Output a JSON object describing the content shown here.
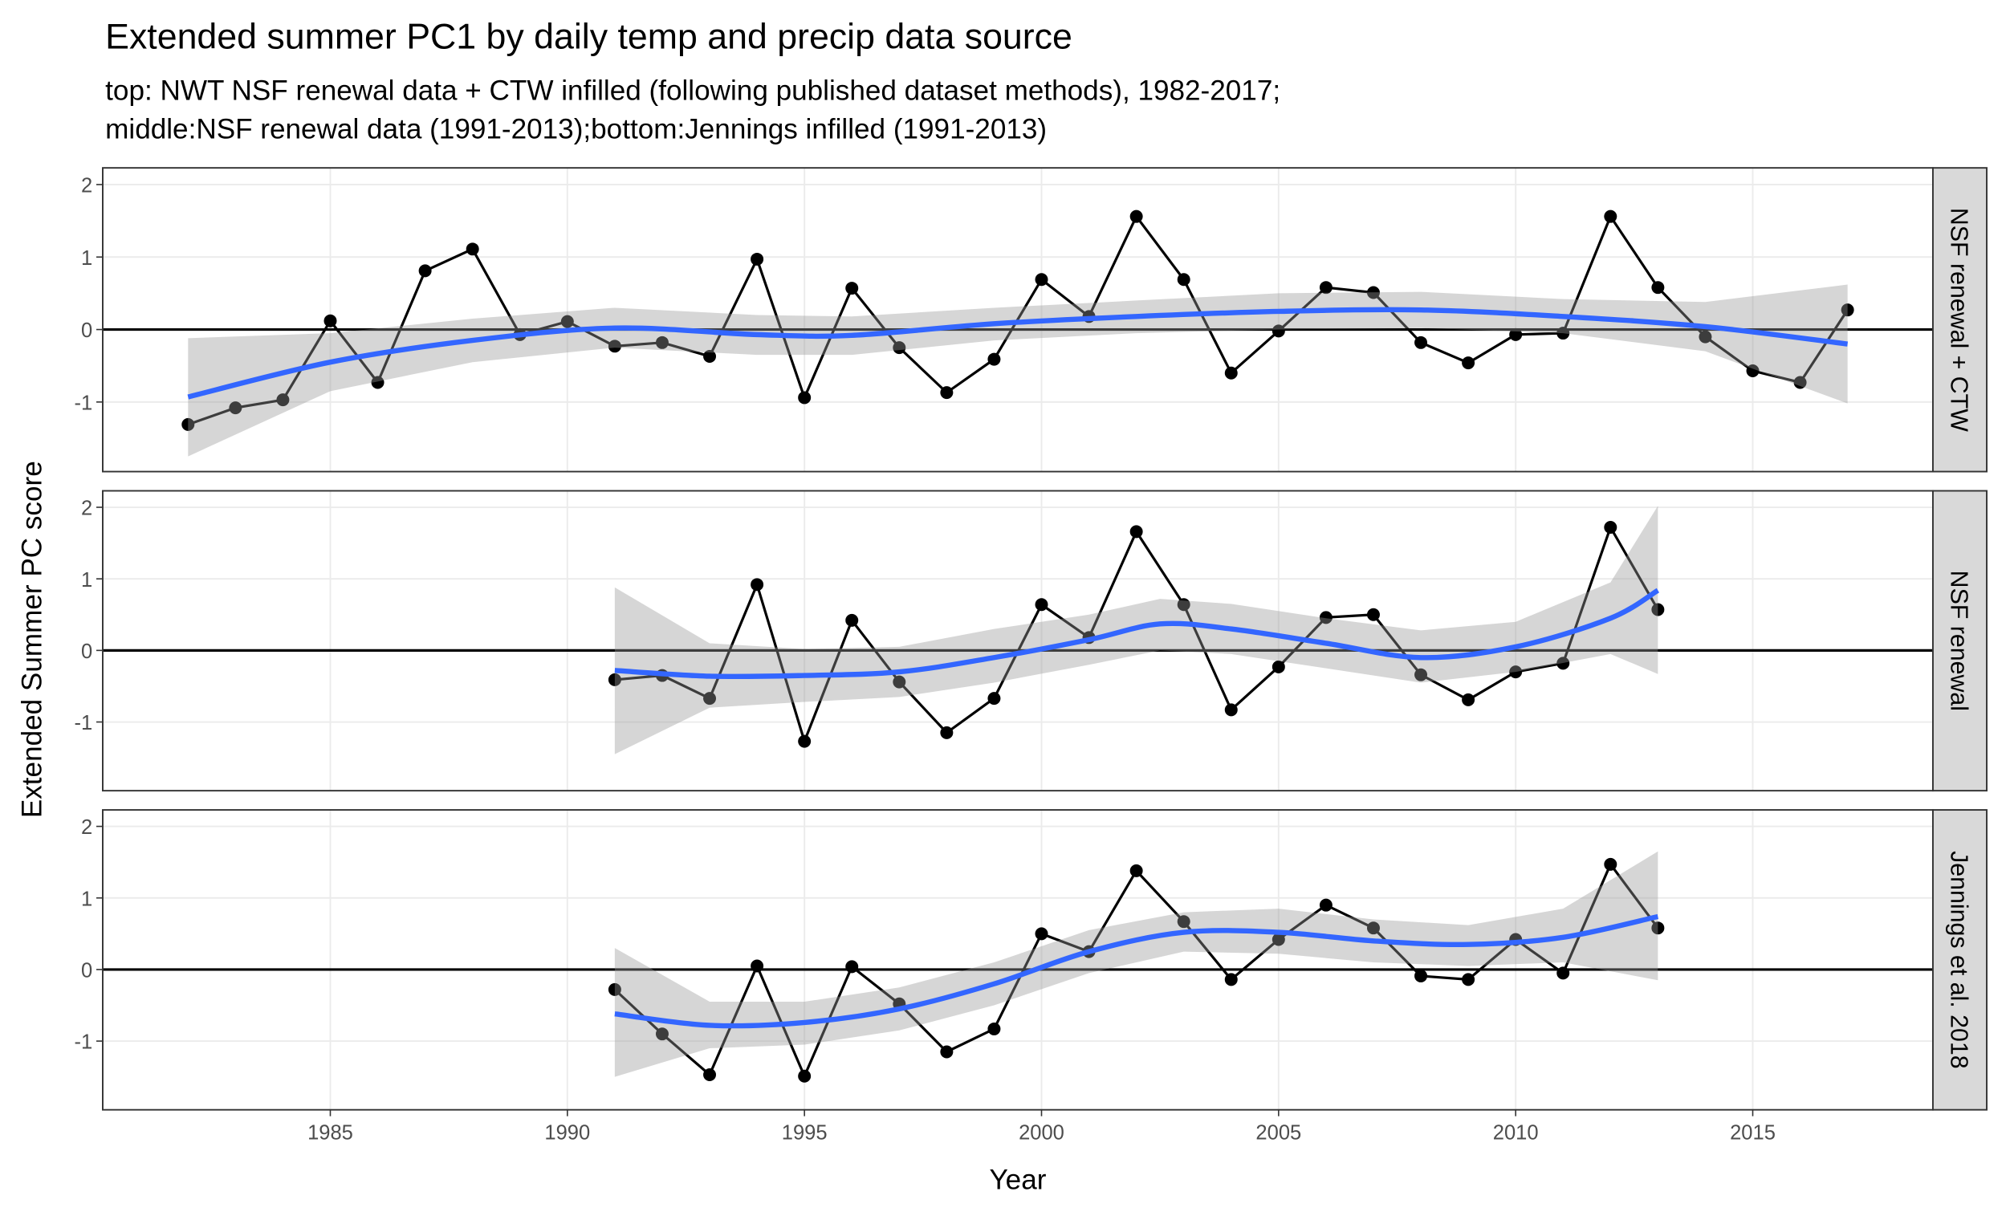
{
  "figure": {
    "title": "Extended summer PC1 by daily temp and precip data source",
    "subtitle": [
      "top: NWT NSF renewal data + CTW infilled (following published dataset methods), 1982-2017;",
      "middle:NSF renewal data (1991-2013);bottom:Jennings infilled (1991-2013)"
    ],
    "x_label": "Year",
    "y_label": "Extended Summer PC score"
  },
  "chart_data": [
    {
      "type": "line",
      "facet_label": "NSF renewal + CTW",
      "color": "#000000",
      "smooth_color": "#3366FF",
      "ribbon_color": "#999999",
      "hline": 0,
      "grid": true,
      "xlim": [
        1980.2,
        2018.8
      ],
      "ylim": [
        -1.96,
        2.23
      ],
      "xticks": [
        1985,
        1990,
        1995,
        2000,
        2005,
        2010,
        2015
      ],
      "yticks": [
        -1,
        0,
        1,
        2
      ],
      "x": [
        1982,
        1983,
        1984,
        1985,
        1986,
        1987,
        1988,
        1989,
        1990,
        1991,
        1992,
        1993,
        1994,
        1995,
        1996,
        1997,
        1998,
        1999,
        2000,
        2001,
        2002,
        2003,
        2004,
        2005,
        2006,
        2007,
        2008,
        2009,
        2010,
        2011,
        2012,
        2013,
        2014,
        2015,
        2016,
        2017
      ],
      "values": [
        -1.31,
        -1.08,
        -0.97,
        0.12,
        -0.73,
        0.81,
        1.11,
        -0.07,
        0.11,
        -0.23,
        -0.18,
        -0.37,
        0.97,
        -0.94,
        0.57,
        -0.25,
        -0.87,
        -0.41,
        0.69,
        0.18,
        1.56,
        0.69,
        -0.6,
        -0.02,
        0.58,
        0.51,
        -0.18,
        -0.46,
        -0.07,
        -0.05,
        1.56,
        0.58,
        -0.1,
        -0.57,
        -0.73,
        0.27
      ],
      "smooth": {
        "x": [
          1982,
          1985,
          1988,
          1991,
          1994,
          1996,
          1999,
          2002,
          2005,
          2008,
          2011,
          2014,
          2017
        ],
        "fit": [
          -0.93,
          -0.45,
          -0.15,
          0.02,
          -0.07,
          -0.08,
          0.08,
          0.18,
          0.25,
          0.27,
          0.18,
          0.04,
          -0.2
        ],
        "lower": [
          -1.75,
          -0.85,
          -0.45,
          -0.25,
          -0.35,
          -0.35,
          -0.15,
          -0.05,
          0.0,
          0.02,
          -0.05,
          -0.3,
          -1.02
        ],
        "upper": [
          -0.12,
          -0.05,
          0.15,
          0.3,
          0.2,
          0.18,
          0.3,
          0.4,
          0.5,
          0.52,
          0.42,
          0.38,
          0.62
        ]
      }
    },
    {
      "type": "line",
      "facet_label": "NSF renewal",
      "color": "#000000",
      "smooth_color": "#3366FF",
      "ribbon_color": "#999999",
      "hline": 0,
      "grid": true,
      "xlim": [
        1980.2,
        2018.8
      ],
      "ylim": [
        -1.96,
        2.23
      ],
      "xticks": [
        1985,
        1990,
        1995,
        2000,
        2005,
        2010,
        2015
      ],
      "yticks": [
        -1,
        0,
        1,
        2
      ],
      "x": [
        1991,
        1992,
        1993,
        1994,
        1995,
        1996,
        1997,
        1998,
        1999,
        2000,
        2001,
        2002,
        2003,
        2004,
        2005,
        2006,
        2007,
        2008,
        2009,
        2010,
        2011,
        2012,
        2013
      ],
      "values": [
        -0.41,
        -0.35,
        -0.67,
        0.92,
        -1.27,
        0.42,
        -0.44,
        -1.15,
        -0.67,
        0.64,
        0.18,
        1.66,
        0.64,
        -0.83,
        -0.23,
        0.46,
        0.5,
        -0.34,
        -0.69,
        -0.3,
        -0.18,
        1.72,
        0.57
      ],
      "smooth": {
        "x": [
          1991,
          1993,
          1995,
          1997,
          1999,
          2001,
          2002.5,
          2004,
          2006,
          2008,
          2010,
          2012,
          2013
        ],
        "fit": [
          -0.28,
          -0.36,
          -0.35,
          -0.3,
          -0.1,
          0.15,
          0.37,
          0.3,
          0.1,
          -0.1,
          0.05,
          0.45,
          0.84
        ],
        "lower": [
          -1.45,
          -0.8,
          -0.72,
          -0.65,
          -0.45,
          -0.2,
          0.0,
          -0.05,
          -0.25,
          -0.45,
          -0.3,
          -0.05,
          -0.33
        ],
        "upper": [
          0.88,
          0.1,
          0.02,
          0.05,
          0.3,
          0.5,
          0.72,
          0.65,
          0.45,
          0.28,
          0.4,
          0.95,
          2.02
        ]
      }
    },
    {
      "type": "line",
      "facet_label": "Jennings et al. 2018",
      "color": "#000000",
      "smooth_color": "#3366FF",
      "ribbon_color": "#999999",
      "hline": 0,
      "grid": true,
      "xlim": [
        1980.2,
        2018.8
      ],
      "ylim": [
        -1.96,
        2.23
      ],
      "xticks": [
        1985,
        1990,
        1995,
        2000,
        2005,
        2010,
        2015
      ],
      "yticks": [
        -1,
        0,
        1,
        2
      ],
      "x": [
        1991,
        1992,
        1993,
        1994,
        1995,
        1996,
        1997,
        1998,
        1999,
        2000,
        2001,
        2002,
        2003,
        2004,
        2005,
        2006,
        2007,
        2008,
        2009,
        2010,
        2011,
        2012,
        2013
      ],
      "values": [
        -0.28,
        -0.9,
        -1.47,
        0.05,
        -1.49,
        0.04,
        -0.48,
        -1.15,
        -0.83,
        0.5,
        0.25,
        1.38,
        0.67,
        -0.14,
        0.42,
        0.9,
        0.58,
        -0.09,
        -0.14,
        0.42,
        -0.05,
        1.47,
        0.58
      ],
      "smooth": {
        "x": [
          1991,
          1993,
          1995,
          1997,
          1999,
          2001,
          2003,
          2005,
          2007,
          2009,
          2011,
          2013
        ],
        "fit": [
          -0.62,
          -0.78,
          -0.74,
          -0.55,
          -0.2,
          0.25,
          0.52,
          0.52,
          0.4,
          0.35,
          0.45,
          0.74
        ],
        "lower": [
          -1.5,
          -1.1,
          -1.05,
          -0.85,
          -0.5,
          -0.05,
          0.25,
          0.22,
          0.1,
          0.05,
          0.1,
          -0.15
        ],
        "upper": [
          0.3,
          -0.45,
          -0.45,
          -0.25,
          0.1,
          0.55,
          0.8,
          0.85,
          0.7,
          0.62,
          0.85,
          1.65
        ]
      }
    }
  ]
}
